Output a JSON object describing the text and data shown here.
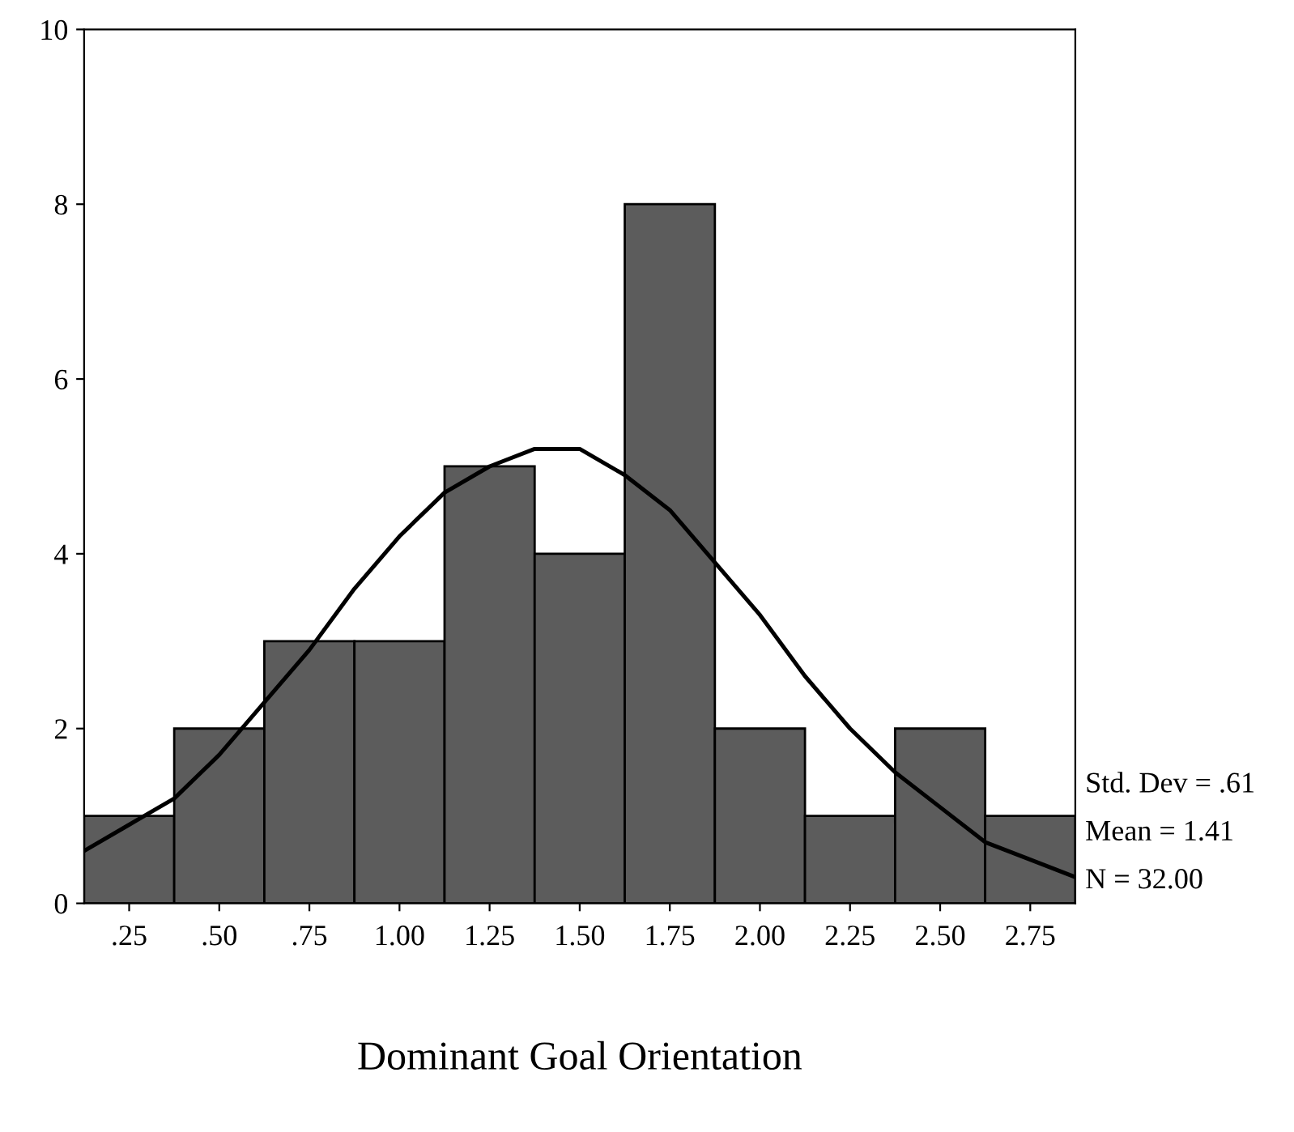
{
  "chart_data": {
    "type": "histogram",
    "xlabel": "Dominant Goal Orientation",
    "bins": [
      0.125,
      0.375,
      0.625,
      0.875,
      1.125,
      1.375,
      1.625,
      1.875,
      2.125,
      2.375,
      2.625,
      2.875
    ],
    "values": [
      1,
      2,
      3,
      3,
      5,
      4,
      8,
      2,
      1,
      2,
      1
    ],
    "color": "#5c5c5c",
    "series": [
      {
        "type": "line",
        "color": "#000000",
        "x": [
          0.125,
          0.25,
          0.375,
          0.5,
          0.625,
          0.75,
          0.875,
          1.0,
          1.125,
          1.25,
          1.375,
          1.5,
          1.625,
          1.75,
          1.875,
          2.0,
          2.125,
          2.25,
          2.375,
          2.5,
          2.625,
          2.75,
          2.875
        ],
        "values": [
          0.6,
          0.9,
          1.2,
          1.7,
          2.3,
          2.9,
          3.6,
          4.2,
          4.7,
          5.0,
          5.2,
          5.2,
          4.9,
          4.5,
          3.9,
          3.3,
          2.6,
          2.0,
          1.5,
          1.1,
          0.7,
          0.5,
          0.3
        ]
      }
    ],
    "xlim": [
      0.125,
      2.875
    ],
    "ylim": [
      0,
      10
    ],
    "xticks": [
      {
        "value": 0.25,
        "label": ".25"
      },
      {
        "value": 0.5,
        "label": ".50"
      },
      {
        "value": 0.75,
        "label": ".75"
      },
      {
        "value": 1.0,
        "label": "1.00"
      },
      {
        "value": 1.25,
        "label": "1.25"
      },
      {
        "value": 1.5,
        "label": "1.50"
      },
      {
        "value": 1.75,
        "label": "1.75"
      },
      {
        "value": 2.0,
        "label": "2.00"
      },
      {
        "value": 2.25,
        "label": "2.25"
      },
      {
        "value": 2.5,
        "label": "2.50"
      },
      {
        "value": 2.75,
        "label": "2.75"
      }
    ],
    "yticks": [
      0,
      2,
      4,
      6,
      8,
      10
    ],
    "annotations": [
      "Std. Dev = .61",
      "Mean = 1.41",
      "N = 32.00"
    ],
    "grid": false,
    "legend": false
  }
}
